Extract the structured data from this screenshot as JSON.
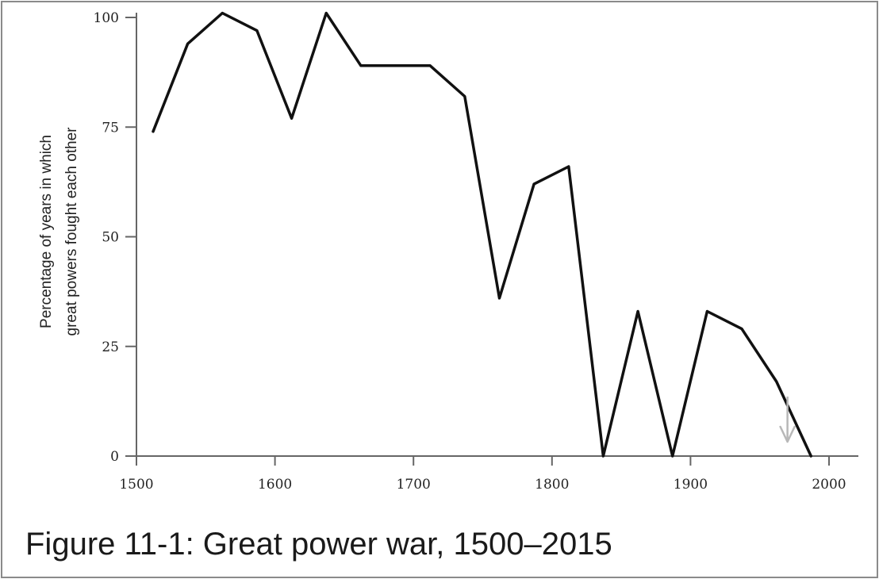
{
  "caption": "Figure 11-1: Great power war, 1500–2015",
  "chart_data": {
    "type": "line",
    "title": "",
    "xlabel": "",
    "ylabel_lines": [
      "Percentage of years in which",
      "great powers fought each other"
    ],
    "xlim": [
      1500,
      2015
    ],
    "ylim": [
      0,
      100
    ],
    "xticks": [
      1500,
      1600,
      1700,
      1800,
      1900,
      2000
    ],
    "yticks": [
      0,
      25,
      50,
      75,
      100
    ],
    "grid": false,
    "line_color": "#111111",
    "annotation": {
      "type": "arrow",
      "x": 1970,
      "color": "#b8b8b8"
    },
    "series": [
      {
        "x": [
          1512,
          1537,
          1562,
          1587,
          1612,
          1637,
          1662,
          1687,
          1712,
          1737,
          1762,
          1787,
          1812,
          1837,
          1862,
          1887,
          1912,
          1937,
          1962,
          1987
        ],
        "values": [
          74,
          94,
          101,
          97,
          77,
          101,
          89,
          89,
          89,
          82,
          36,
          62,
          66,
          0,
          33,
          0,
          33,
          29,
          17,
          0
        ]
      }
    ]
  }
}
